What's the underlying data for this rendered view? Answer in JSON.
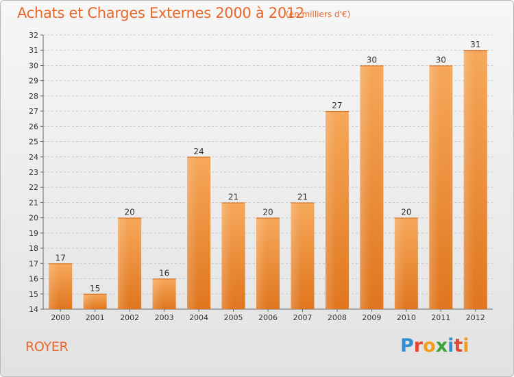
{
  "header": {
    "title": "Achats et Charges Externes 2000 à 2012",
    "subtitle": "(en milliers d'€)"
  },
  "footer": {
    "town": "ROYER",
    "logo_text": "Proxiti",
    "logo_letters": [
      {
        "ch": "P",
        "color": "#2f8fd0"
      },
      {
        "ch": "r",
        "color": "#e2462e"
      },
      {
        "ch": "o",
        "color": "#f29b1d"
      },
      {
        "ch": "x",
        "color": "#3aa537"
      },
      {
        "ch": "i",
        "color": "#2f8fd0"
      },
      {
        "ch": "t",
        "color": "#e2462e"
      },
      {
        "ch": "i",
        "color": "#f29b1d"
      }
    ]
  },
  "chart_data": {
    "type": "bar",
    "title": "Achats et Charges Externes 2000 à 2012",
    "subtitle": "(en milliers d'€)",
    "xlabel": "",
    "ylabel": "",
    "categories": [
      "2000",
      "2001",
      "2002",
      "2003",
      "2004",
      "2005",
      "2006",
      "2007",
      "2008",
      "2009",
      "2010",
      "2011",
      "2012"
    ],
    "values": [
      17,
      15,
      20,
      16,
      24,
      21,
      20,
      21,
      27,
      30,
      20,
      30,
      31
    ],
    "ylim": [
      14,
      32
    ],
    "yticks": [
      14,
      15,
      16,
      17,
      18,
      19,
      20,
      21,
      22,
      23,
      24,
      25,
      26,
      27,
      28,
      29,
      30,
      31,
      32
    ],
    "grid": "horizontal dashed",
    "bar_color_top": "#f6a85a",
    "bar_color_bottom": "#e0761e"
  }
}
